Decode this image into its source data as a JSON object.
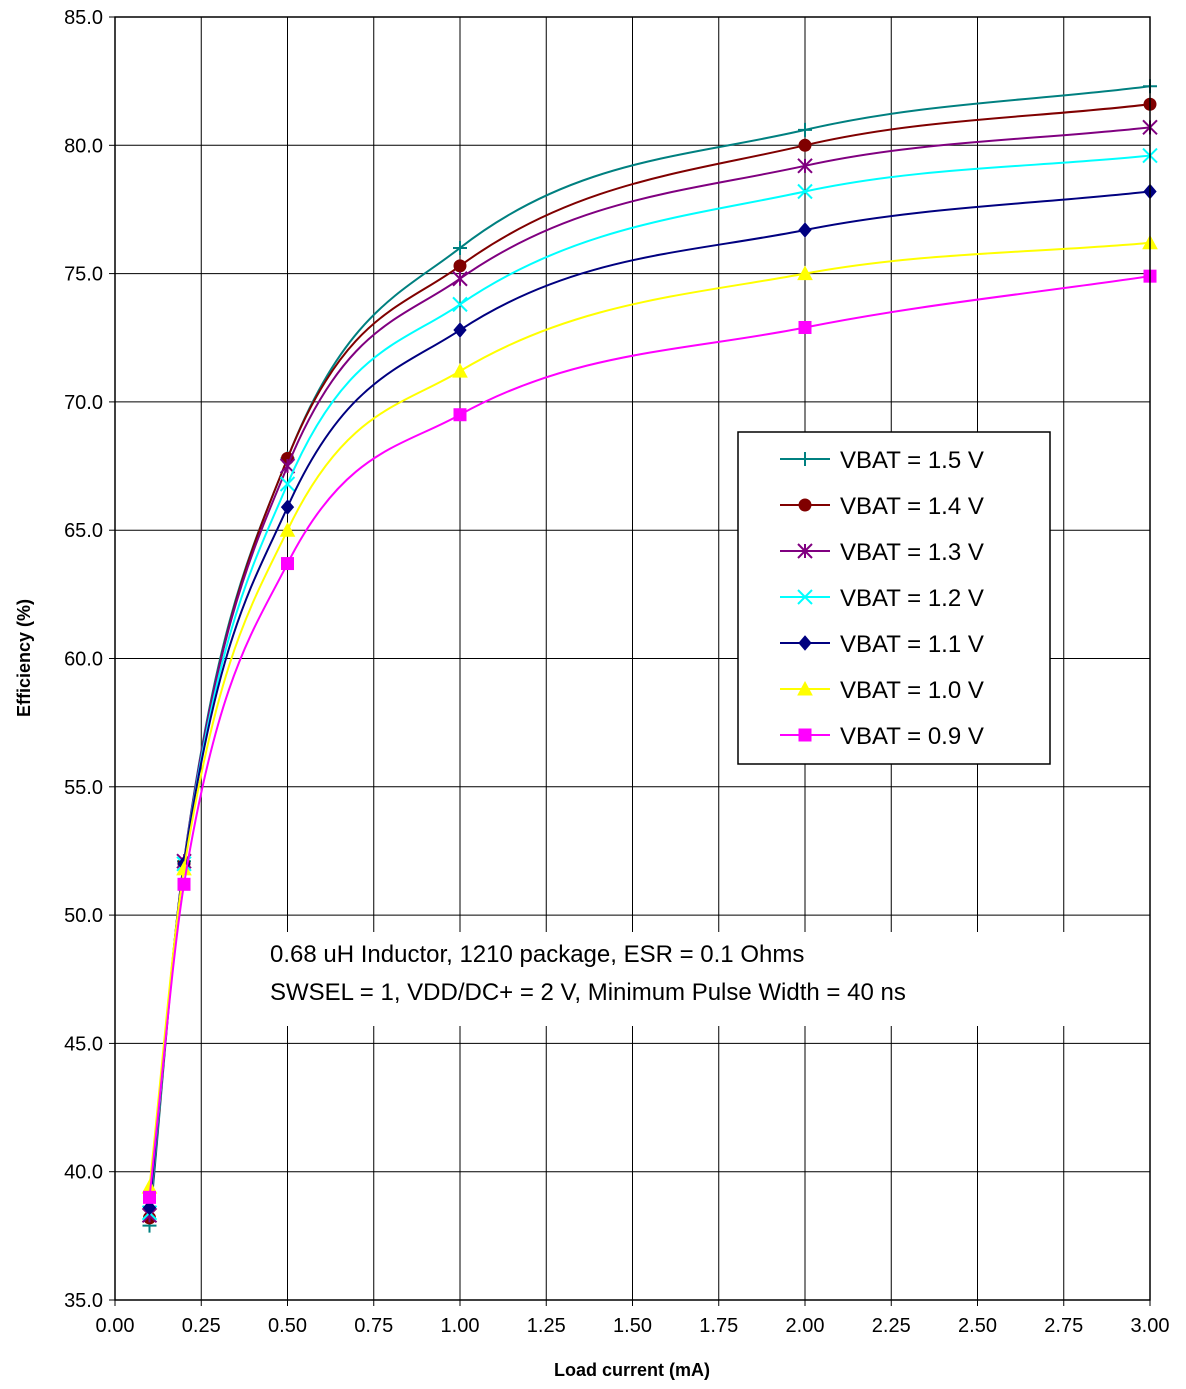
{
  "chart_data": {
    "type": "line",
    "title": "",
    "xlabel": "Load current (mA)",
    "ylabel": "Efficiency (%)",
    "xlim": [
      0,
      3
    ],
    "ylim": [
      35,
      85
    ],
    "x_ticks": [
      "0.00",
      "0.25",
      "0.50",
      "0.75",
      "1.00",
      "1.25",
      "1.50",
      "1.75",
      "2.00",
      "2.25",
      "2.50",
      "2.75",
      "3.00"
    ],
    "y_ticks": [
      "35.0",
      "40.0",
      "45.0",
      "50.0",
      "55.0",
      "60.0",
      "65.0",
      "70.0",
      "75.0",
      "80.0",
      "85.0"
    ],
    "grid": true,
    "legend_position": "right",
    "x": [
      0.1,
      0.2,
      0.5,
      1.0,
      2.0,
      3.0
    ],
    "series": [
      {
        "name": "VBAT = 1.5 V",
        "color": "#008080",
        "marker": "plus",
        "values": [
          37.9,
          52.1,
          67.8,
          76.0,
          80.6,
          82.3
        ]
      },
      {
        "name": "VBAT = 1.4 V",
        "color": "#800000",
        "marker": "circle",
        "values": [
          38.2,
          52.0,
          67.8,
          75.3,
          80.0,
          81.6
        ]
      },
      {
        "name": "VBAT = 1.3 V",
        "color": "#800080",
        "marker": "asterisk",
        "values": [
          38.3,
          52.1,
          67.5,
          74.8,
          79.2,
          80.7
        ]
      },
      {
        "name": "VBAT = 1.2 V",
        "color": "#00FFFF",
        "marker": "x",
        "values": [
          38.4,
          52.0,
          66.8,
          73.8,
          78.2,
          79.6
        ]
      },
      {
        "name": "VBAT = 1.1 V",
        "color": "#000080",
        "marker": "diamond",
        "values": [
          38.6,
          52.0,
          65.9,
          72.8,
          76.7,
          78.2
        ]
      },
      {
        "name": "VBAT = 1.0 V",
        "color": "#FFFF00",
        "marker": "triangle",
        "values": [
          39.4,
          51.8,
          65.0,
          71.2,
          75.0,
          76.2
        ]
      },
      {
        "name": "VBAT = 0.9 V",
        "color": "#FF00FF",
        "marker": "square",
        "values": [
          39.0,
          51.2,
          63.7,
          69.5,
          72.9,
          74.9
        ]
      }
    ],
    "annotations": [
      "0.68 uH Inductor, 1210 package, ESR = 0.1 Ohms",
      "SWSEL = 1,  VDD/DC+ = 2 V, Minimum Pulse Width = 40 ns"
    ]
  }
}
